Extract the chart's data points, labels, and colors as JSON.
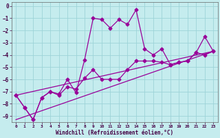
{
  "xlabel": "Windchill (Refroidissement éolien,°C)",
  "background_color": "#c5ecee",
  "line_color": "#990099",
  "grid_color": "#9dd4d8",
  "xlim": [
    -0.5,
    23.5
  ],
  "ylim": [
    -9.5,
    0.3
  ],
  "xticks": [
    0,
    1,
    2,
    3,
    4,
    5,
    6,
    7,
    8,
    9,
    10,
    11,
    12,
    13,
    14,
    15,
    16,
    17,
    18,
    19,
    20,
    21,
    22,
    23
  ],
  "yticks": [
    0,
    -1,
    -2,
    -3,
    -4,
    -5,
    -6,
    -7,
    -8,
    -9
  ],
  "line1_x": [
    0,
    1,
    2,
    3,
    4,
    5,
    6,
    7,
    8,
    9,
    10,
    11,
    12,
    13,
    14,
    15,
    16,
    17,
    18,
    19,
    20,
    21,
    22,
    23
  ],
  "line1_y": [
    -7.3,
    -8.3,
    -9.3,
    -7.5,
    -7.0,
    -7.2,
    -6.0,
    -7.1,
    -4.4,
    -1.0,
    -1.1,
    -1.8,
    -1.1,
    -1.5,
    -0.3,
    -3.5,
    -4.0,
    -3.5,
    -4.8,
    -4.6,
    -4.5,
    -3.8,
    -2.5,
    -3.7
  ],
  "line2_x": [
    0,
    1,
    2,
    3,
    4,
    5,
    6,
    7,
    8,
    9,
    10,
    11,
    12,
    13,
    14,
    15,
    16,
    17,
    18,
    19,
    20,
    21,
    22,
    23
  ],
  "line2_y": [
    -7.3,
    -8.3,
    -9.3,
    -7.5,
    -7.0,
    -7.3,
    -6.6,
    -6.8,
    -5.9,
    -5.2,
    -6.0,
    -6.0,
    -6.0,
    -5.2,
    -4.5,
    -4.5,
    -4.5,
    -4.6,
    -4.8,
    -4.6,
    -4.5,
    -3.8,
    -4.0,
    -3.7
  ],
  "line3_x": [
    0,
    23
  ],
  "line3_y": [
    -7.3,
    -3.7
  ],
  "line4_x": [
    0,
    23
  ],
  "line4_y": [
    -9.3,
    -3.7
  ],
  "markersize": 2.5,
  "linewidth": 0.9
}
